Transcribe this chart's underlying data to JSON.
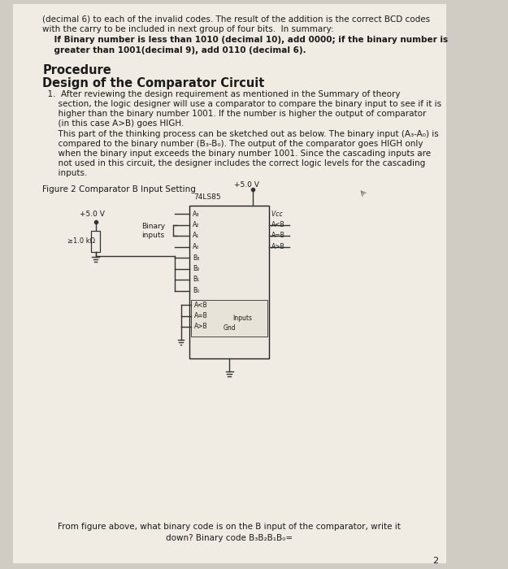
{
  "bg_color": "#d0ccc4",
  "page_bg": "#f0ece4",
  "text_color": "#1a1a1a",
  "para1_line1": "(decimal 6) to each of the invalid codes. The result of the addition is the correct BCD codes",
  "para1_line2": "with the carry to be included in next group of four bits.  In summary:",
  "para1_bold_line1": "    If Binary number is less than 1010 (decimal 10), add 0000; if the binary number is",
  "para1_bold_line2": "    greater than 1001(decimal 9), add 0110 (decimal 6).",
  "heading1": "Procedure",
  "heading2": "Design of the Comparator Circuit",
  "item1_line1": "  1.  After reviewing the design requirement as mentioned in the Summary of theory",
  "item1_line2": "      section, the logic designer will use a comparator to compare the binary input to see if it is",
  "item1_line3": "      higher than the binary number 1001. If the number is higher the output of comparator",
  "item1_line4": "      (in this case A>B) goes HIGH.",
  "item1_line5": "      This part of the thinking process can be sketched out as below. The binary input (A₃-A₀) is",
  "item1_line6": "      compared to the binary number (B₃-B₀). The output of the comparator goes HIGH only",
  "item1_line7": "      when the binary input exceeds the binary number 1001. Since the cascading inputs are",
  "item1_line8": "      not used in this circuit, the designer includes the correct logic levels for the cascading",
  "item1_line9": "      inputs.",
  "fig_label": "Figure 2 Comparator B Input Setting",
  "bottom_line1": "From figure above, what binary code is on the B input of the comparator, write it",
  "bottom_line2": "down? Binary code B₃B₂B₁B₀=",
  "page_number": "2",
  "base_fontsize": 7.5
}
